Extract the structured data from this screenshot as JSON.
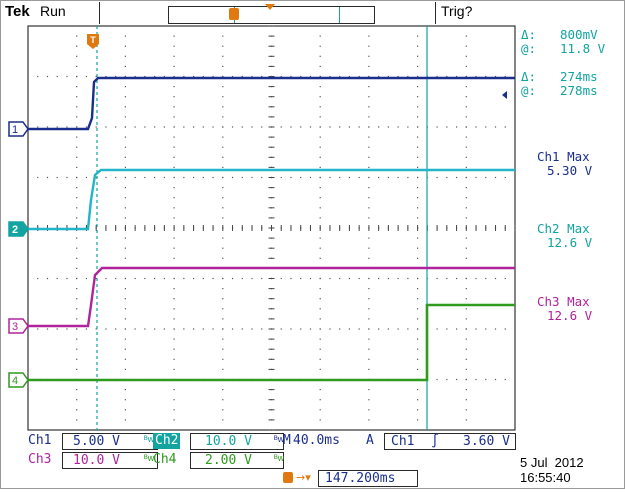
{
  "header": {
    "brand": "Tek",
    "status": "Run",
    "trigger_state": "Trig?"
  },
  "cursor_readout": {
    "amp_delta_label": "Δ:",
    "amp_delta": "800mV",
    "amp_at_label": "@:",
    "amp_at": "11.8 V",
    "time_delta_label": "Δ:",
    "time_delta": "274ms",
    "time_at_label": "@:",
    "time_at": "278ms"
  },
  "measurements": [
    {
      "label": "Ch1 Max",
      "value": "5.30 V"
    },
    {
      "label": "Ch2 Max",
      "value": "12.6 V"
    },
    {
      "label": "Ch3 Max",
      "value": "12.6 V"
    }
  ],
  "channel_markers": [
    "1",
    "2",
    "3",
    "4"
  ],
  "trigger_marker": "T",
  "channel_settings": {
    "ch1_name": "Ch1",
    "ch1_scale": "5.00 V",
    "ch2_name": "Ch2",
    "ch2_scale": "10.0 V",
    "ch3_name": "Ch3",
    "ch3_scale": "10.0 V",
    "ch4_name": "Ch4",
    "ch4_scale": "2.00 V",
    "bw_symbol": "ᴮw"
  },
  "timebase": {
    "label": "M",
    "value": "40.0ms"
  },
  "trigger": {
    "mode": "A",
    "source": "Ch1",
    "slope": "∫",
    "level": "3.60 V"
  },
  "position": {
    "value": "147.200ms"
  },
  "datetime": {
    "date": "5 Jul  2012",
    "time": "16:55:40"
  },
  "colors": {
    "ch1": "#1a2e8c",
    "ch2": "#22b4c8",
    "ch3": "#b0239a",
    "ch4": "#2e9a1e",
    "trigger": "#e07a10",
    "cursor": "#12a4a0"
  }
}
